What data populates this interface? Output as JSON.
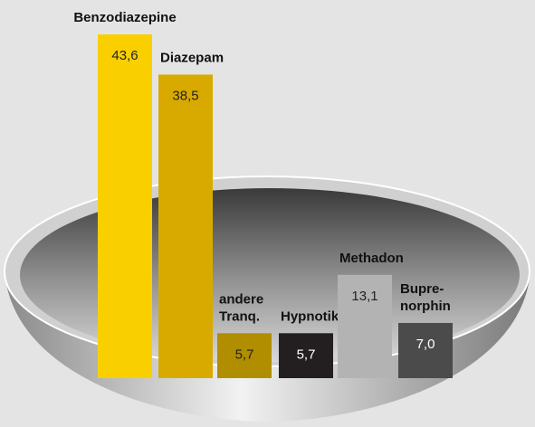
{
  "chart_data": {
    "type": "bar",
    "categories": [
      [
        "Benzodiazepine"
      ],
      [
        "Diazepam"
      ],
      [
        "andere",
        "Tranq."
      ],
      [
        "Hypnotika"
      ],
      [
        "Methadon"
      ],
      [
        "Bupre-",
        "norphin"
      ]
    ],
    "values": [
      43.6,
      38.5,
      5.7,
      5.7,
      13.1,
      7.0
    ],
    "value_labels": [
      "43,6",
      "38,5",
      "5,7",
      "5,7",
      "13,1",
      "7,0"
    ],
    "colors": [
      "#f9cf00",
      "#d8aa00",
      "#b08e00",
      "#231f20",
      "#b3b3b3",
      "#4b4b4b"
    ]
  }
}
